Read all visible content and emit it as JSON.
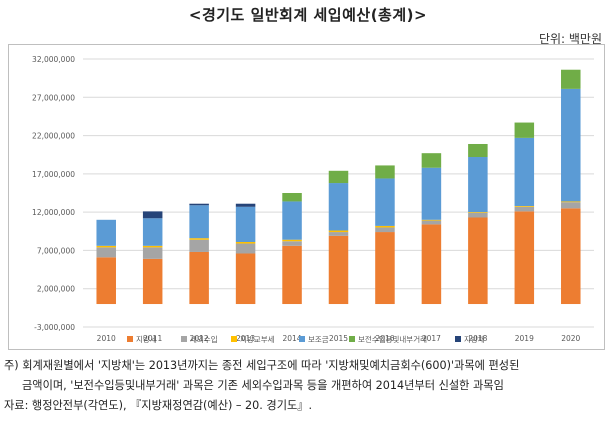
{
  "title": "<경기도 일반회계 세입예산(총계)>",
  "unit_label": "단위: 백만원",
  "chart_data": {
    "type": "bar",
    "stacked": true,
    "categories": [
      "2010",
      "2011",
      "2012",
      "2013",
      "2014",
      "2015",
      "2016",
      "2017",
      "2018",
      "2019",
      "2020"
    ],
    "ylim": [
      -3000000,
      32000000
    ],
    "yticks": [
      -3000000,
      2000000,
      7000000,
      12000000,
      17000000,
      22000000,
      27000000,
      32000000
    ],
    "ytick_labels": [
      "-3,000,000",
      "2,000,000",
      "7,000,000",
      "12,000,000",
      "17,000,000",
      "22,000,000",
      "27,000,000",
      "32,000,000"
    ],
    "grid": true,
    "legend_position": "bottom",
    "series": [
      {
        "name": "지방세",
        "color": "#ed7d31",
        "values": [
          6100000,
          5900000,
          6800000,
          6600000,
          7600000,
          8900000,
          9400000,
          10400000,
          11300000,
          12100000,
          12500000
        ]
      },
      {
        "name": "세외수입",
        "color": "#a5a5a5",
        "values": [
          1300000,
          1500000,
          1600000,
          1300000,
          600000,
          500000,
          600000,
          500000,
          600000,
          600000,
          800000
        ]
      },
      {
        "name": "지방교부세",
        "color": "#ffc000",
        "values": [
          200000,
          200000,
          200000,
          200000,
          200000,
          200000,
          200000,
          100000,
          100000,
          100000,
          100000
        ]
      },
      {
        "name": "보조금",
        "color": "#5b9bd5",
        "values": [
          3400000,
          3600000,
          4300000,
          4600000,
          5000000,
          6200000,
          6200000,
          6800000,
          7200000,
          8900000,
          14700000
        ]
      },
      {
        "name": "보전수입등및내부거래",
        "color": "#70ad47",
        "values": [
          0,
          0,
          0,
          0,
          1100000,
          1600000,
          1700000,
          1900000,
          1700000,
          2000000,
          2500000
        ]
      },
      {
        "name": "지방채",
        "color": "#264478",
        "values": [
          0,
          900000,
          200000,
          400000,
          0,
          0,
          0,
          0,
          0,
          0,
          0
        ]
      }
    ]
  },
  "notes": {
    "line1": "주) 회계재원별에서 '지방채'는 2013년까지는 종전 세입구조에 따라 '지방채및예치금회수(600)'과목에 편성된",
    "line2": "금액이며, '보전수입등및내부거래' 과목은 기존 세외수입과목 등을 개편하여 2014년부터 신설한 과목임",
    "line3": "자료: 행정안전부(각연도), 『지방재정연감(예산) – 20. 경기도』."
  }
}
